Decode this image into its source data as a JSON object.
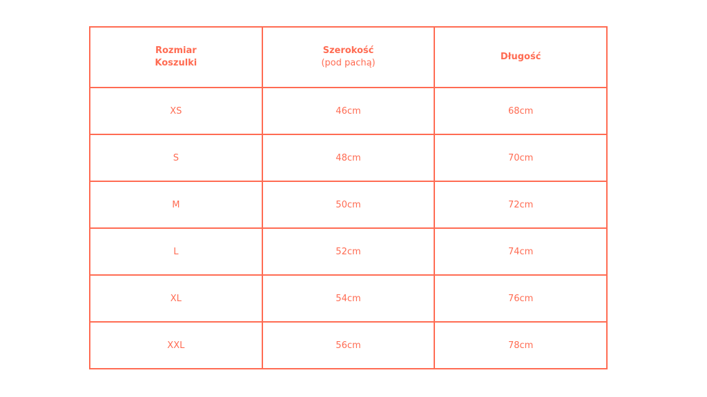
{
  "accent_color": "#FF6B52",
  "header": {
    "size_line1": "Rozmiar",
    "size_line2": "Koszulki",
    "width": "Szerokość",
    "width_sub": "(pod pachą)",
    "length": "Długość"
  },
  "rows": [
    {
      "size": "XS",
      "width": "46cm",
      "length": "68cm"
    },
    {
      "size": "S",
      "width": "48cm",
      "length": "70cm"
    },
    {
      "size": "M",
      "width": "50cm",
      "length": "72cm"
    },
    {
      "size": "L",
      "width": "52cm",
      "length": "74cm"
    },
    {
      "size": "XL",
      "width": "54cm",
      "length": "76cm"
    },
    {
      "size": "XXL",
      "width": "56cm",
      "length": "78cm"
    }
  ]
}
